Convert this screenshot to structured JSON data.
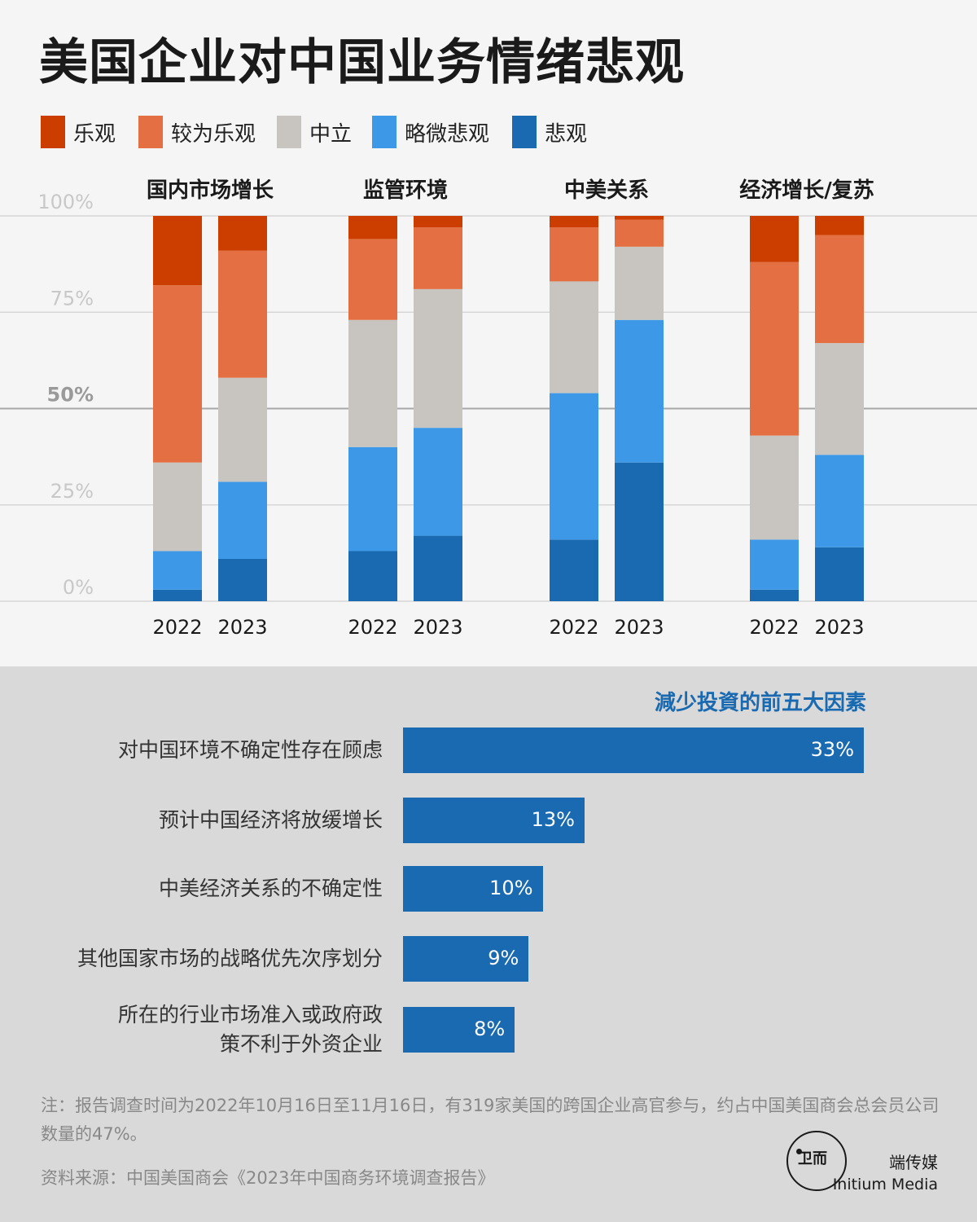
{
  "title": "美国企业对中国业务情绪悲观",
  "legend": [
    {
      "label": "乐观",
      "color": "#cc3d00"
    },
    {
      "label": "较为乐观",
      "color": "#e46f42"
    },
    {
      "label": "中立",
      "color": "#c8c5c0"
    },
    {
      "label": "略微悲观",
      "color": "#3d99e8"
    },
    {
      "label": "悲观",
      "color": "#1a6ab2"
    }
  ],
  "chart_data": [
    {
      "type": "bar",
      "stacked": true,
      "ylim": [
        0,
        100
      ],
      "yticks": [
        "0%",
        "25%",
        "50%",
        "75%",
        "100%"
      ],
      "series_names": [
        "悲观",
        "略微悲观",
        "中立",
        "较为乐观",
        "乐观"
      ],
      "groups": [
        {
          "title": "国内市场增长",
          "bars": [
            {
              "year": "2022",
              "values": [
                3,
                10,
                23,
                46,
                18
              ]
            },
            {
              "year": "2023",
              "values": [
                11,
                20,
                27,
                33,
                9
              ]
            }
          ]
        },
        {
          "title": "监管环境",
          "bars": [
            {
              "year": "2022",
              "values": [
                13,
                27,
                33,
                21,
                6
              ]
            },
            {
              "year": "2023",
              "values": [
                17,
                28,
                36,
                16,
                3
              ]
            }
          ]
        },
        {
          "title": "中美关系",
          "bars": [
            {
              "year": "2022",
              "values": [
                16,
                38,
                29,
                14,
                3
              ]
            },
            {
              "year": "2023",
              "values": [
                36,
                37,
                19,
                7,
                1
              ]
            }
          ]
        },
        {
          "title": "经济增长/复苏",
          "bars": [
            {
              "year": "2022",
              "values": [
                3,
                13,
                27,
                45,
                12
              ]
            },
            {
              "year": "2023",
              "values": [
                14,
                24,
                29,
                28,
                5
              ]
            }
          ]
        }
      ]
    },
    {
      "type": "bar",
      "orientation": "horizontal",
      "title": "減少投資的前五大因素",
      "categories": [
        "对中国环境不确定性存在顾虑",
        "预计中国经济将放缓增长",
        "中美经济关系的不确定性",
        "其他国家市场的战略优先次序划分",
        "所在的行业市场准入或政府政策不利于外资企业"
      ],
      "values": [
        33,
        13,
        10,
        9,
        8
      ],
      "value_labels": [
        "33%",
        "13%",
        "10%",
        "9%",
        "8%"
      ],
      "color": "#1a6ab2"
    }
  ],
  "factors": {
    "title": "減少投資的前五大因素",
    "items": [
      {
        "label": "对中国环境不确定性存在顾虑",
        "value": 33,
        "value_label": "33%"
      },
      {
        "label": "预计中国经济将放缓增长",
        "value": 13,
        "value_label": "13%"
      },
      {
        "label": "中美经济关系的不确定性",
        "value": 10,
        "value_label": "10%"
      },
      {
        "label": "其他国家市场的战略优先次序划分",
        "value": 9,
        "value_label": "9%"
      },
      {
        "label": "所在的行业市场准入或政府政策不利于外资企业",
        "value": 8,
        "value_label": "8%"
      }
    ]
  },
  "note": "注：报告调查时间为2022年10月16日至11月16日，有319家美国的跨国企业高官参与，约占中国美国商会总会员公司数量的47%。",
  "source": "资料来源：中国美国商会《2023年中国商务环境调查报告》",
  "brand": {
    "cn": "端传媒",
    "en": "Initium Media",
    "logo_text": "卫而"
  }
}
